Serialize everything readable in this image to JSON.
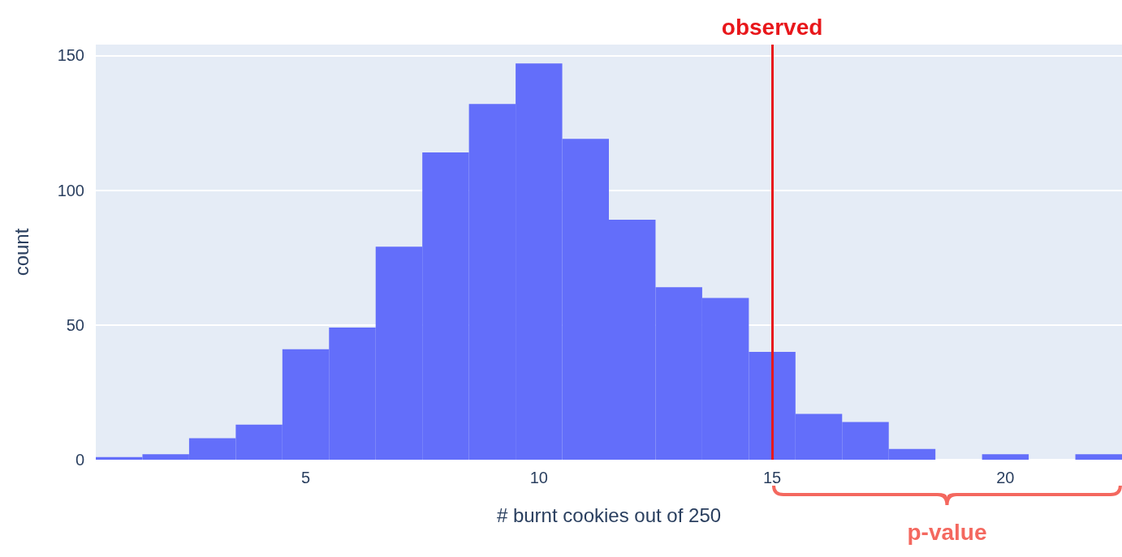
{
  "chart_data": {
    "type": "histogram",
    "xlabel": "# burnt cookies out of 250",
    "ylabel": "count",
    "color": "#636efa",
    "bins": [
      0.5,
      1.5,
      2.5,
      3.5,
      4.5,
      5.5,
      6.5,
      7.5,
      8.5,
      9.5,
      10.5,
      11.5,
      12.5,
      13.5,
      14.5,
      15.5,
      16.5,
      17.5,
      18.5,
      19.5,
      20.5,
      21.5,
      22.5
    ],
    "values": [
      1,
      2,
      8,
      13,
      41,
      49,
      79,
      114,
      132,
      147,
      119,
      89,
      64,
      60,
      40,
      17,
      14,
      4,
      0,
      2,
      0,
      2
    ],
    "xlim": [
      0.5,
      22.5
    ],
    "xticks": [
      5,
      10,
      15,
      20
    ],
    "ylim": [
      0,
      154
    ],
    "yticks": [
      0,
      50,
      100,
      150
    ],
    "grid": "y",
    "ref_lines": [
      {
        "axis": "x",
        "value": 15,
        "label": "observed",
        "color": "#e8171b"
      }
    ],
    "annotations": [
      "p-value"
    ]
  }
}
